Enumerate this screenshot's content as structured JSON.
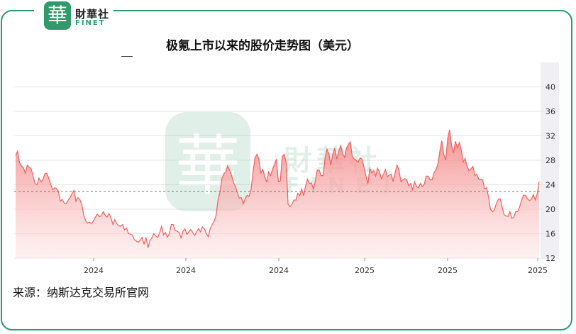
{
  "logo": {
    "cn": "財華社",
    "en": "FINET",
    "seal_char": "華",
    "brand_color": "#2f9a6a"
  },
  "chart_data": {
    "type": "area",
    "title": "极氪上市以来的股价走势图（美元）",
    "source": "来源：纳斯达克交易所官网",
    "ylim": [
      12,
      44
    ],
    "y_ticks": [
      "40",
      "36",
      "32",
      "28",
      "24",
      "20",
      "16",
      "12"
    ],
    "y_tick_values": [
      40,
      36,
      32,
      28,
      24,
      20,
      16,
      12
    ],
    "x_tick_labels": [
      "2024",
      "2024",
      "2024",
      "2025",
      "2025",
      "2025"
    ],
    "reference_line": 22.9,
    "line_color": "#f06060",
    "fill_color": "#f78a8a",
    "watermark": "財華社 FINET",
    "series": [
      {
        "values": [
          28.8,
          29.5,
          27.6,
          27.1,
          26.8,
          25.9,
          27.2,
          26.9,
          26.6,
          25.4,
          24.2,
          24.0,
          25.1,
          24.5,
          24.8,
          25.8,
          25.9,
          25.1,
          24.1,
          23.2,
          23.5,
          23.4,
          22.9,
          21.3,
          21.6,
          21.0,
          20.9,
          21.5,
          21.9,
          22.6,
          23.1,
          21.3,
          21.9,
          21.6,
          20.8,
          19.0,
          18.1,
          17.7,
          17.9,
          17.6,
          18.1,
          18.7,
          19.2,
          18.8,
          18.9,
          19.6,
          19.0,
          18.7,
          19.3,
          18.6,
          17.5,
          18.3,
          17.6,
          17.3,
          17.2,
          17.5,
          16.6,
          16.9,
          16.0,
          15.9,
          15.8,
          15.0,
          14.8,
          14.6,
          14.9,
          15.4,
          14.3,
          15.4,
          13.7,
          14.9,
          15.3,
          16.0,
          15.6,
          15.4,
          16.1,
          17.2,
          15.8,
          16.2,
          15.4,
          16.0,
          17.5,
          17.5,
          16.5,
          16.4,
          16.2,
          15.3,
          16.4,
          16.8,
          15.9,
          16.3,
          16.7,
          16.2,
          15.7,
          16.3,
          16.8,
          16.3,
          17.1,
          16.8,
          16.0,
          15.5,
          16.8,
          17.5,
          18.0,
          19.0,
          21.5,
          22.8,
          25.0,
          25.8,
          26.1,
          27.1,
          26.4,
          25.5,
          24.3,
          23.7,
          22.6,
          21.8,
          21.9,
          20.9,
          21.8,
          22.3,
          22.1,
          23.3,
          26.1,
          28.4,
          29.0,
          28.2,
          25.9,
          26.5,
          25.4,
          24.4,
          26.1,
          25.5,
          26.5,
          27.3,
          28.2,
          24.5,
          24.6,
          28.6,
          29.0,
          27.7,
          20.8,
          20.4,
          20.8,
          21.5,
          21.5,
          22.6,
          22.2,
          23.3,
          22.2,
          23.8,
          24.9,
          24.2,
          24.3,
          23.3,
          24.6,
          26.4,
          26.4,
          25.5,
          25.5,
          28.4,
          29.8,
          29.0,
          27.2,
          29.0,
          30.0,
          28.2,
          29.4,
          30.4,
          29.2,
          28.5,
          30.0,
          30.6,
          31.0,
          28.6,
          28.2,
          28.0,
          27.7,
          28.4,
          28.2,
          26.9,
          25.5,
          24.1,
          26.7,
          25.9,
          26.3,
          25.4,
          26.7,
          26.1,
          25.0,
          25.7,
          26.5,
          25.3,
          25.6,
          25.7,
          24.5,
          26.0,
          27.2,
          26.4,
          24.5,
          24.8,
          25.0,
          24.8,
          23.8,
          24.2,
          23.2,
          24.5,
          23.7,
          23.5,
          24.2,
          23.7,
          24.1,
          25.4,
          25.4,
          24.8,
          24.8,
          26.0,
          26.4,
          27.4,
          29.5,
          31.2,
          29.0,
          28.0,
          31.5,
          33.0,
          30.5,
          29.2,
          31.1,
          30.0,
          30.9,
          29.7,
          27.7,
          28.3,
          27.0,
          26.3,
          26.6,
          27.0,
          25.5,
          25.7,
          24.9,
          24.9,
          24.8,
          23.3,
          23.5,
          22.0,
          20.0,
          19.6,
          19.8,
          20.9,
          21.6,
          21.7,
          20.4,
          19.1,
          18.9,
          18.8,
          19.6,
          18.5,
          18.7,
          19.6,
          19.6,
          20.4,
          21.5,
          22.3,
          22.3,
          21.7,
          21.4,
          21.6,
          22.4,
          21.5,
          22.5,
          24.5
        ]
      }
    ]
  }
}
